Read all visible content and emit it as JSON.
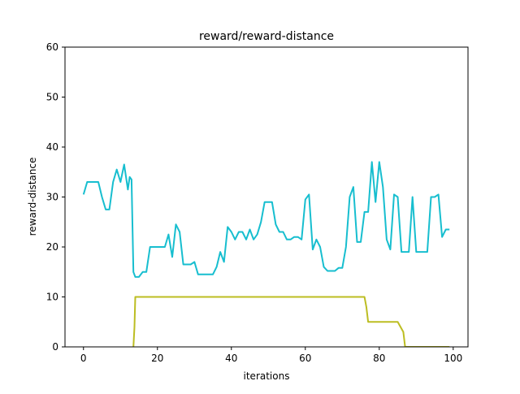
{
  "chart_data": {
    "type": "line",
    "title": "reward/reward-distance",
    "xlabel": "iterations",
    "ylabel": "reward-distance",
    "xlim": [
      -5,
      104
    ],
    "ylim": [
      0,
      60
    ],
    "xticks": [
      0,
      20,
      40,
      60,
      80,
      100
    ],
    "yticks": [
      0,
      10,
      20,
      30,
      40,
      50,
      60
    ],
    "xtick_labels": [
      "0",
      "20",
      "40",
      "60",
      "80",
      "100"
    ],
    "ytick_labels": [
      "0",
      "10",
      "20",
      "30",
      "40",
      "50",
      "60"
    ],
    "grid": false,
    "series": [
      {
        "color": "#17becf",
        "x": [
          0,
          1,
          2,
          3,
          4,
          5,
          6,
          7,
          8,
          9,
          10,
          11,
          12,
          12.5,
          13,
          13.5,
          14,
          15,
          16,
          17,
          18,
          19,
          20,
          21,
          22,
          23,
          24,
          25,
          26,
          27,
          28,
          29,
          30,
          31,
          32,
          33,
          34,
          35,
          36,
          37,
          38,
          39,
          40,
          41,
          42,
          43,
          44,
          45,
          46,
          47,
          48,
          49,
          50,
          51,
          52,
          53,
          54,
          55,
          56,
          57,
          58,
          59,
          60,
          61,
          62,
          63,
          64,
          65,
          66,
          67,
          68,
          69,
          70,
          71,
          72,
          73,
          74,
          75,
          76,
          77,
          78,
          79,
          80,
          81,
          82,
          83,
          84,
          85,
          86,
          87,
          88,
          89,
          90,
          91,
          92,
          93,
          94,
          95,
          96,
          97,
          98,
          99
        ],
        "y": [
          30.5,
          33,
          33,
          33,
          33,
          30,
          27.5,
          27.5,
          33,
          35.5,
          33,
          36.5,
          31.5,
          34,
          33.5,
          15,
          14,
          14,
          15,
          15,
          20,
          20,
          20,
          20,
          20,
          22.5,
          18,
          24.5,
          23,
          16.5,
          16.5,
          16.5,
          17,
          14.5,
          14.5,
          14.5,
          14.5,
          14.5,
          16,
          19,
          17,
          24,
          23,
          21.5,
          23,
          23,
          21.5,
          23.5,
          21.5,
          22.5,
          25,
          29,
          29,
          29,
          24.5,
          23,
          23,
          21.5,
          21.5,
          22,
          22,
          21.5,
          29.5,
          30.5,
          19.5,
          21.5,
          20,
          16,
          15.2,
          15.2,
          15.2,
          15.8,
          15.8,
          20,
          30,
          32,
          21,
          21,
          27,
          27,
          37,
          29,
          37,
          32,
          21.5,
          19.5,
          30.5,
          30,
          19,
          19,
          19,
          30,
          19,
          19,
          19,
          19,
          30,
          30,
          30.5,
          22,
          23.5,
          23.5
        ]
      },
      {
        "color": "#bcbd22",
        "x": [
          13.5,
          13.8,
          14,
          20,
          40,
          60,
          70,
          76,
          76.5,
          77,
          80,
          84,
          85,
          86.5,
          87,
          90,
          95,
          99
        ],
        "y": [
          0,
          4,
          10,
          10,
          10,
          10,
          10,
          10,
          8,
          5,
          5,
          5,
          5,
          3,
          0,
          0,
          0,
          0
        ]
      }
    ]
  }
}
